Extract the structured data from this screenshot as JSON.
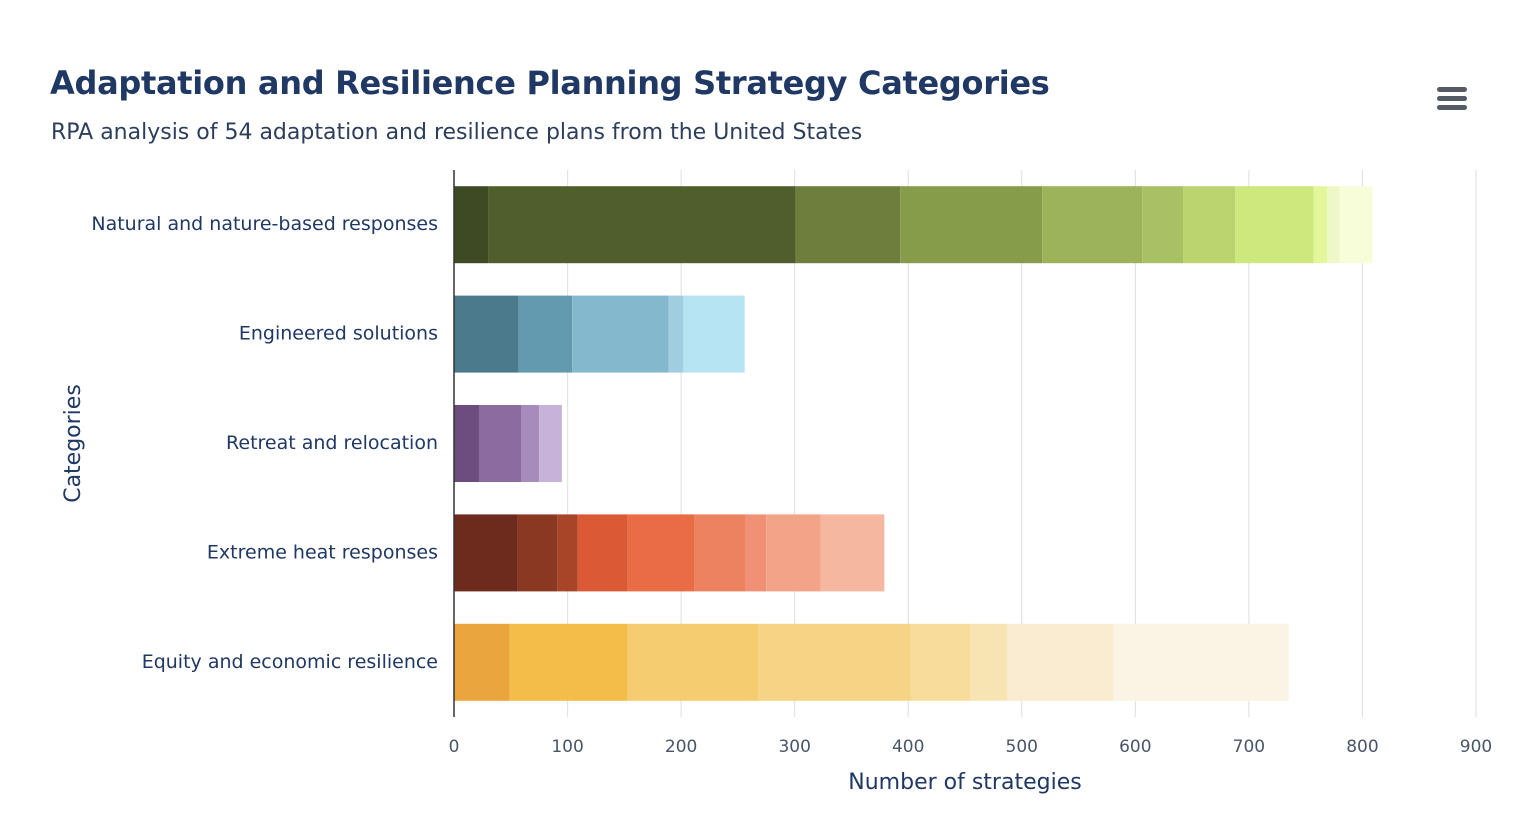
{
  "header": {
    "title": "Adaptation and Resilience Planning Strategy Categories",
    "subtitle": "RPA analysis of 54 adaptation and resilience plans from the United States"
  },
  "menu": {
    "icon": "hamburger-menu-icon"
  },
  "chart_data": {
    "type": "bar",
    "orientation": "horizontal",
    "stacked": true,
    "title": "Adaptation and Resilience Planning Strategy Categories",
    "subtitle": "RPA analysis of 54 adaptation and resilience plans from the United States",
    "xlabel": "Number of strategies",
    "ylabel": "Categories",
    "xlim": [
      0,
      900
    ],
    "x_ticks": [
      0,
      100,
      200,
      300,
      400,
      500,
      600,
      700,
      800,
      900
    ],
    "grid": true,
    "legend": "none",
    "categories": [
      "Natural and nature-based responses",
      "Engineered solutions",
      "Retreat and relocation",
      "Extreme heat responses",
      "Equity and economic resilience"
    ],
    "segments": [
      {
        "values": [
          30,
          271,
          92,
          125,
          88,
          36,
          46,
          69,
          12,
          11,
          29
        ],
        "colors": [
          "#3d4a23",
          "#4f5e2a",
          "#6e7f3d",
          "#879c4b",
          "#9db359",
          "#a9c165",
          "#bcd46f",
          "#cde87c",
          "#e3f79a",
          "#eef7c6",
          "#f8fdd9"
        ]
      },
      {
        "values": [
          57,
          47,
          85,
          13,
          54
        ],
        "colors": [
          "#4b7a8c",
          "#639aaf",
          "#84b9cd",
          "#a1cde0",
          "#b7e4f3"
        ]
      },
      {
        "values": [
          22,
          37,
          16,
          20
        ],
        "colors": [
          "#6d4d80",
          "#8b6ba0",
          "#a88bbd",
          "#c7b2da"
        ]
      },
      {
        "values": [
          56,
          35,
          18,
          44,
          59,
          45,
          18,
          48,
          56
        ],
        "colors": [
          "#6d2b1d",
          "#8a3822",
          "#a84428",
          "#d95a34",
          "#e96c44",
          "#ec8260",
          "#f09074",
          "#f2a388",
          "#f5b7a0"
        ]
      },
      {
        "values": [
          49,
          104,
          115,
          134,
          53,
          32,
          94,
          154
        ],
        "colors": [
          "#eba53e",
          "#f3bd48",
          "#f5cc70",
          "#f7d386",
          "#f7dc9c",
          "#f8e4b2",
          "#f9ecd0",
          "#fbf3e4"
        ]
      }
    ]
  }
}
